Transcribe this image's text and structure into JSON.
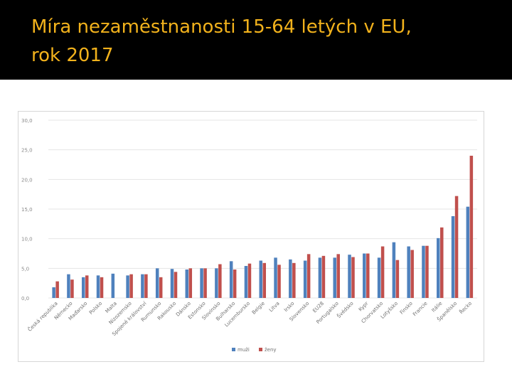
{
  "slide": {
    "title": "Míra nezaměstnanosti 15-64 letých v EU,\nrok 2017",
    "colors": {
      "background": "#000000",
      "title": "#f2b21c"
    }
  },
  "chart_data": {
    "type": "bar",
    "title": "",
    "xlabel": "",
    "ylabel": "",
    "ylim": [
      0,
      30
    ],
    "yticks": [
      "0,0",
      "5,0",
      "10,0",
      "15,0",
      "20,0",
      "25,0",
      "30,0"
    ],
    "grid": true,
    "legend_position": "bottom",
    "categories": [
      "Česká republika",
      "Německo",
      "Maďarsko",
      "Polsko",
      "Malta",
      "Nizozemsko",
      "Spojené království",
      "Rumunsko",
      "Rakousko",
      "Dánsko",
      "Estonsko",
      "Slovinsko",
      "Bulharsko",
      "Lucembursko",
      "Belgie",
      "Litva",
      "Irsko",
      "Slovensko",
      "EU28",
      "Portugalsko",
      "Švédsko",
      "Kypr",
      "Chorvatsko",
      "Lotyšsko",
      "Finsko",
      "Francie",
      "Itálie",
      "Španělsko",
      "Řecko"
    ],
    "series": [
      {
        "name": "muži",
        "color": "#4f81bd",
        "values": [
          1.8,
          4.0,
          3.5,
          3.8,
          4.1,
          3.8,
          4.0,
          5.0,
          4.9,
          4.8,
          5.0,
          5.0,
          6.2,
          5.4,
          6.3,
          6.8,
          6.5,
          6.3,
          6.8,
          6.8,
          7.3,
          7.5,
          6.8,
          9.4,
          8.7,
          8.8,
          10.1,
          13.8,
          15.4
        ]
      },
      {
        "name": "ženy",
        "color": "#c0504d",
        "values": [
          2.8,
          3.1,
          3.8,
          3.5,
          0.0,
          4.0,
          4.0,
          3.5,
          4.4,
          5.0,
          5.0,
          5.7,
          4.8,
          5.8,
          5.9,
          5.6,
          5.9,
          7.4,
          7.1,
          7.4,
          6.9,
          7.5,
          8.7,
          6.4,
          8.1,
          8.8,
          11.9,
          17.2,
          24.0
        ]
      }
    ]
  }
}
